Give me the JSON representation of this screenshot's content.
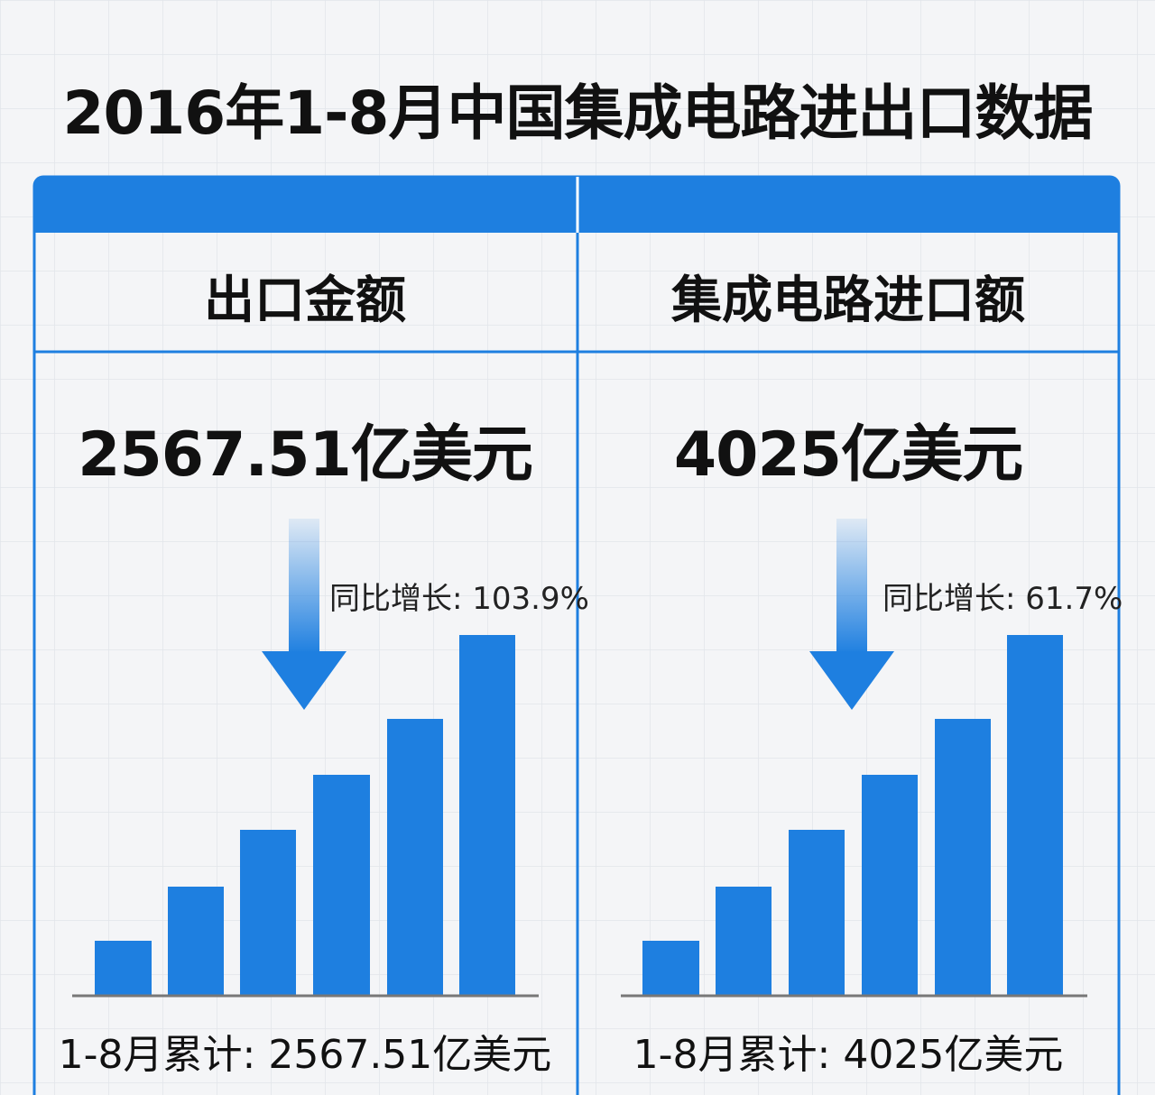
{
  "title": "2016年1-8月中国集成电路进出口数据",
  "panels": [
    {
      "header": "出口金额",
      "amount": "2567.51亿美元",
      "growth": "同比增长: 103.9%",
      "footer": "1-8月累计: 2567.51亿美元"
    },
    {
      "header": "集成电路进口额",
      "amount": "4025亿美元",
      "growth": "同比增长: 61.7%",
      "footer": "1-8月累计: 4025亿美元"
    }
  ]
}
